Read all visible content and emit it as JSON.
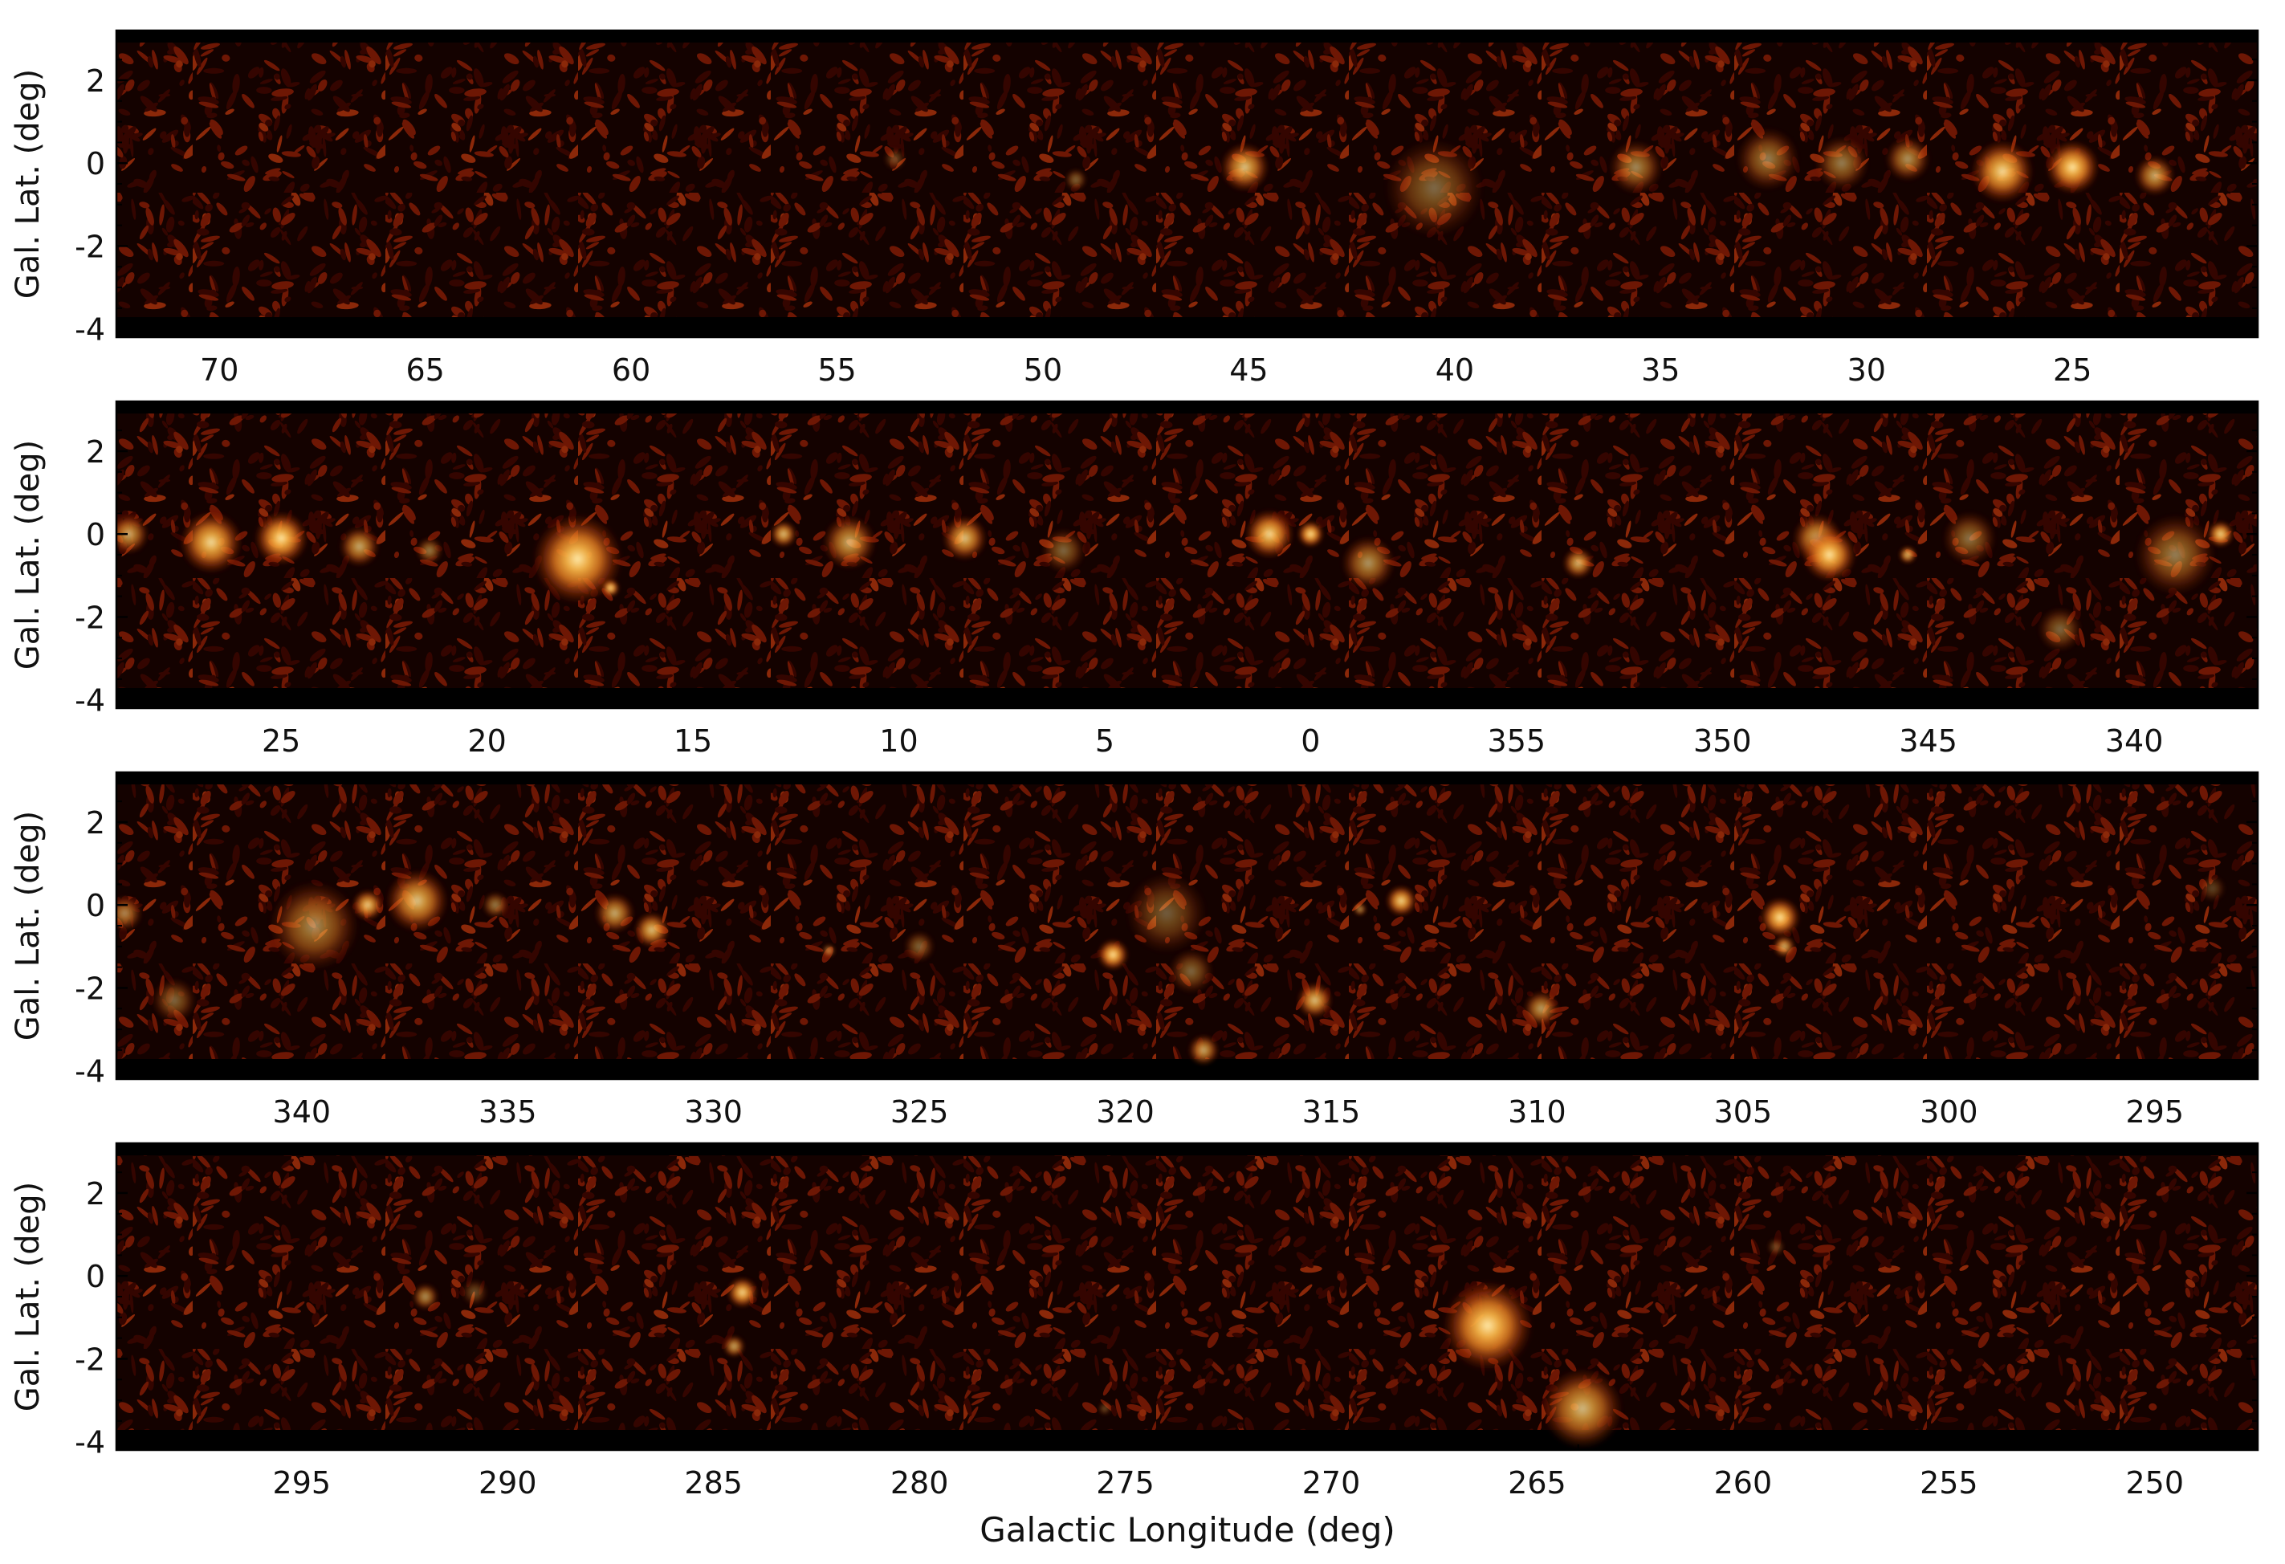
{
  "chart_data": {
    "type": "heatmap",
    "xlabel": "Galactic Longitude (deg)",
    "ylabel": "Gal. Lat. (deg)",
    "colormap": [
      "#000000",
      "#3a0600",
      "#7a1a05",
      "#b8400f",
      "#e07a20",
      "#f7b345",
      "#ffe9a8"
    ],
    "yticks": [
      2,
      0,
      -2,
      -4
    ],
    "ylim": [
      -4.2,
      3.2
    ],
    "panels": [
      {
        "xlim": [
          72.5,
          20.5
        ],
        "xticks": [
          70,
          65,
          60,
          55,
          50,
          45,
          40,
          35,
          30,
          25
        ],
        "xtick_labels": [
          "70",
          "65",
          "60",
          "55",
          "50",
          "45",
          "40",
          "35",
          "30",
          "25"
        ],
        "sources": [
          {
            "l": 45.1,
            "b": -0.1,
            "r": 0.55,
            "i": 0.85
          },
          {
            "l": 40.5,
            "b": -0.6,
            "r": 1.1,
            "i": 0.45
          },
          {
            "l": 35.6,
            "b": -0.1,
            "r": 0.6,
            "i": 0.6
          },
          {
            "l": 32.4,
            "b": 0.1,
            "r": 0.7,
            "i": 0.55
          },
          {
            "l": 30.6,
            "b": 0.0,
            "r": 0.6,
            "i": 0.55
          },
          {
            "l": 29.0,
            "b": 0.1,
            "r": 0.5,
            "i": 0.65
          },
          {
            "l": 26.7,
            "b": -0.2,
            "r": 0.7,
            "i": 0.95
          },
          {
            "l": 25.0,
            "b": -0.1,
            "r": 0.6,
            "i": 1.0
          },
          {
            "l": 23.0,
            "b": -0.3,
            "r": 0.45,
            "i": 0.75
          },
          {
            "l": 49.2,
            "b": -0.4,
            "r": 0.25,
            "i": 0.45
          },
          {
            "l": 53.6,
            "b": 0.1,
            "r": 0.25,
            "i": 0.35
          }
        ]
      },
      {
        "xlim": [
          29.0,
          337.0
        ],
        "xticks": [
          25,
          20,
          15,
          10,
          5,
          0,
          355,
          350,
          345,
          340
        ],
        "xtick_labels": [
          "25",
          "20",
          "15",
          "10",
          "5",
          "0",
          "355",
          "350",
          "345",
          "340"
        ],
        "sources": [
          {
            "l": 28.7,
            "b": 0.0,
            "r": 0.45,
            "i": 0.75
          },
          {
            "l": 26.7,
            "b": -0.2,
            "r": 0.7,
            "i": 0.95
          },
          {
            "l": 25.0,
            "b": -0.1,
            "r": 0.6,
            "i": 1.0
          },
          {
            "l": 23.1,
            "b": -0.3,
            "r": 0.45,
            "i": 0.75
          },
          {
            "l": 21.4,
            "b": -0.4,
            "r": 0.3,
            "i": 0.55
          },
          {
            "l": 17.8,
            "b": -0.6,
            "r": 1.0,
            "i": 1.0
          },
          {
            "l": 17.0,
            "b": -1.3,
            "r": 0.2,
            "i": 1.0
          },
          {
            "l": 12.8,
            "b": 0.0,
            "r": 0.3,
            "i": 0.85
          },
          {
            "l": 11.2,
            "b": -0.2,
            "r": 0.6,
            "i": 0.75
          },
          {
            "l": 8.4,
            "b": -0.1,
            "r": 0.5,
            "i": 0.85
          },
          {
            "l": 6.0,
            "b": -0.4,
            "r": 0.5,
            "i": 0.45
          },
          {
            "l": 1.0,
            "b": 0.0,
            "r": 0.55,
            "i": 0.95
          },
          {
            "l": 0.0,
            "b": 0.0,
            "r": 0.3,
            "i": 1.0
          },
          {
            "l": -1.4,
            "b": -0.7,
            "r": 0.6,
            "i": 0.65
          },
          {
            "l": -6.5,
            "b": -0.7,
            "r": 0.35,
            "i": 0.8
          },
          {
            "l": -12.3,
            "b": -0.1,
            "r": 0.55,
            "i": 0.8
          },
          {
            "l": -12.6,
            "b": -0.5,
            "r": 0.6,
            "i": 1.0
          },
          {
            "l": -14.5,
            "b": -0.5,
            "r": 0.2,
            "i": 0.85
          },
          {
            "l": -16.0,
            "b": -0.1,
            "r": 0.6,
            "i": 0.5
          },
          {
            "l": -18.2,
            "b": -2.3,
            "r": 0.5,
            "i": 0.45
          },
          {
            "l": -21.0,
            "b": -0.5,
            "r": 0.9,
            "i": 0.55
          },
          {
            "l": -22.1,
            "b": 0.0,
            "r": 0.3,
            "i": 0.95
          }
        ]
      },
      {
        "xlim": [
          344.5,
          292.5
        ],
        "xticks": [
          340,
          335,
          330,
          325,
          320,
          315,
          310,
          305,
          300,
          295
        ],
        "xtick_labels": [
          "340",
          "335",
          "330",
          "325",
          "320",
          "315",
          "310",
          "305",
          "300",
          "295"
        ],
        "sources": [
          {
            "l": 344.3,
            "b": -0.2,
            "r": 0.4,
            "i": 0.6
          },
          {
            "l": 343.1,
            "b": -2.3,
            "r": 0.5,
            "i": 0.45
          },
          {
            "l": 339.7,
            "b": -0.5,
            "r": 1.0,
            "i": 0.6
          },
          {
            "l": 338.4,
            "b": 0.0,
            "r": 0.35,
            "i": 0.9
          },
          {
            "l": 337.2,
            "b": 0.1,
            "r": 0.7,
            "i": 0.85
          },
          {
            "l": 335.3,
            "b": 0.0,
            "r": 0.3,
            "i": 0.55
          },
          {
            "l": 332.4,
            "b": -0.2,
            "r": 0.45,
            "i": 0.75
          },
          {
            "l": 331.5,
            "b": -0.6,
            "r": 0.4,
            "i": 0.85
          },
          {
            "l": 327.2,
            "b": -1.1,
            "r": 0.15,
            "i": 0.6
          },
          {
            "l": 325.0,
            "b": -1.0,
            "r": 0.35,
            "i": 0.45
          },
          {
            "l": 320.3,
            "b": -1.2,
            "r": 0.35,
            "i": 1.0
          },
          {
            "l": 319.0,
            "b": -0.2,
            "r": 0.9,
            "i": 0.4
          },
          {
            "l": 318.4,
            "b": -1.6,
            "r": 0.5,
            "i": 0.45
          },
          {
            "l": 318.1,
            "b": -3.5,
            "r": 0.35,
            "i": 0.75
          },
          {
            "l": 315.4,
            "b": -2.3,
            "r": 0.4,
            "i": 0.85
          },
          {
            "l": 313.3,
            "b": 0.1,
            "r": 0.35,
            "i": 0.95
          },
          {
            "l": 314.3,
            "b": -0.1,
            "r": 0.15,
            "i": 0.65
          },
          {
            "l": 309.9,
            "b": -2.5,
            "r": 0.4,
            "i": 0.7
          },
          {
            "l": 304.1,
            "b": -0.3,
            "r": 0.45,
            "i": 1.0
          },
          {
            "l": 304.0,
            "b": -1.0,
            "r": 0.25,
            "i": 0.8
          },
          {
            "l": 293.6,
            "b": 0.4,
            "r": 0.3,
            "i": 0.3
          }
        ]
      },
      {
        "xlim": [
          299.5,
          247.5
        ],
        "xticks": [
          295,
          290,
          285,
          280,
          275,
          270,
          265,
          260,
          255,
          250
        ],
        "xtick_labels": [
          "295",
          "290",
          "285",
          "280",
          "275",
          "270",
          "265",
          "260",
          "255",
          "250"
        ],
        "sources": [
          {
            "l": 292.0,
            "b": -0.5,
            "r": 0.3,
            "i": 0.65
          },
          {
            "l": 290.8,
            "b": -0.4,
            "r": 0.3,
            "i": 0.35
          },
          {
            "l": 284.3,
            "b": -0.4,
            "r": 0.35,
            "i": 0.95
          },
          {
            "l": 284.5,
            "b": -1.7,
            "r": 0.25,
            "i": 0.75
          },
          {
            "l": 266.2,
            "b": -1.2,
            "r": 1.0,
            "i": 1.0
          },
          {
            "l": 263.9,
            "b": -3.2,
            "r": 0.9,
            "i": 0.8
          },
          {
            "l": 275.5,
            "b": -3.2,
            "r": 0.15,
            "i": 0.35
          },
          {
            "l": 259.2,
            "b": 0.7,
            "r": 0.2,
            "i": 0.35
          }
        ]
      }
    ]
  }
}
